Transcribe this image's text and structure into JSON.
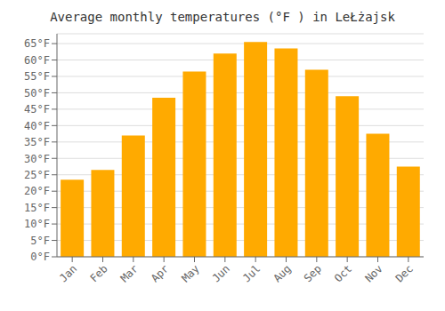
{
  "chart_data": {
    "type": "bar",
    "title": "Average monthly temperatures (°F ) in LeŁżajsk",
    "categories": [
      "Jan",
      "Feb",
      "Mar",
      "Apr",
      "May",
      "Jun",
      "Jul",
      "Aug",
      "Sep",
      "Oct",
      "Nov",
      "Dec"
    ],
    "values": [
      23.5,
      26.5,
      37.0,
      48.5,
      56.5,
      62.0,
      65.5,
      63.5,
      57.0,
      49.0,
      37.5,
      27.5
    ],
    "color": "#FFAA00",
    "ylim": [
      0,
      68
    ],
    "yticks": [
      {
        "value": 0,
        "label": "0°F"
      },
      {
        "value": 5,
        "label": "5°F"
      },
      {
        "value": 10,
        "label": "10°F"
      },
      {
        "value": 15,
        "label": "15°F"
      },
      {
        "value": 20,
        "label": "20°F"
      },
      {
        "value": 25,
        "label": "25°F"
      },
      {
        "value": 30,
        "label": "30°F"
      },
      {
        "value": 35,
        "label": "35°F"
      },
      {
        "value": 40,
        "label": "40°F"
      },
      {
        "value": 45,
        "label": "45°F"
      },
      {
        "value": 50,
        "label": "50°F"
      },
      {
        "value": 55,
        "label": "55°F"
      },
      {
        "value": 60,
        "label": "60°F"
      },
      {
        "value": 65,
        "label": "65°F"
      }
    ],
    "grid": true
  }
}
